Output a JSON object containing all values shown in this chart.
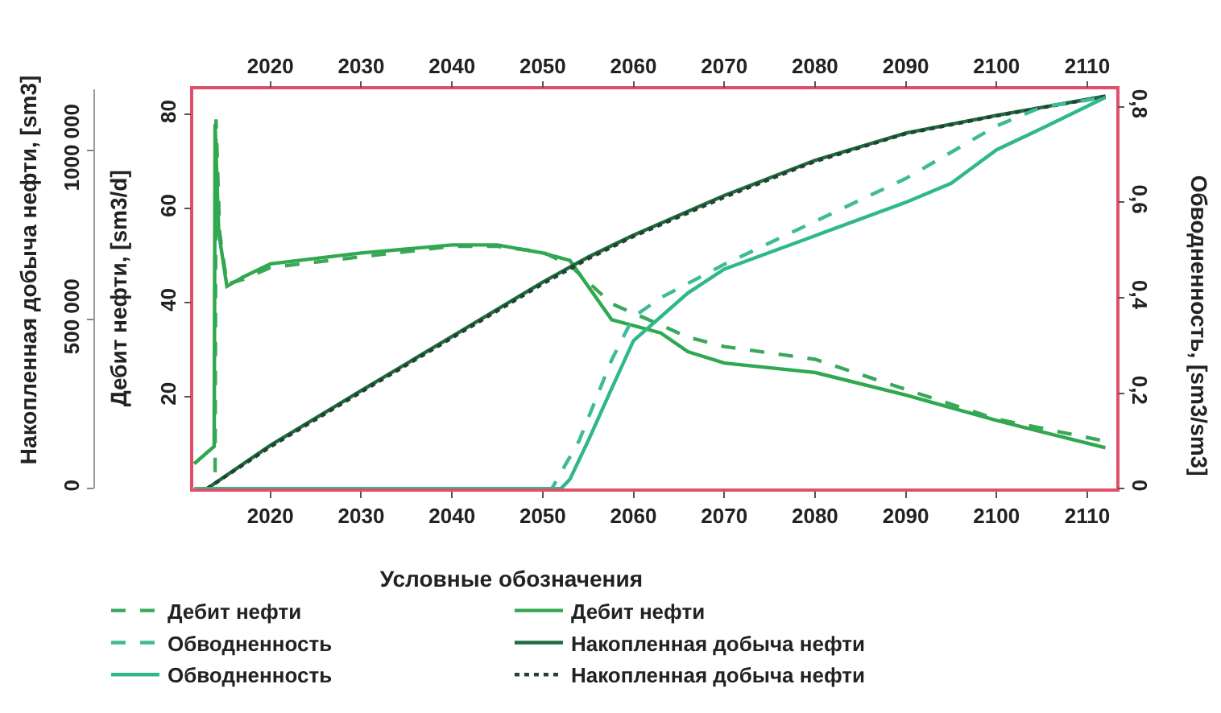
{
  "chart_data": {
    "type": "line",
    "ylabel": "Дебит нефти, [sm3/d]",
    "y2label": "Обводненность, [sm3/sm3]",
    "y3label": "Накопленная добыча нефти, [sm3]",
    "legend_title": "Условные обозначения",
    "legend": "bottom",
    "xlim": [
      2011.5,
      2113.2
    ],
    "xticks": [
      2020,
      2030,
      2040,
      2050,
      2060,
      2070,
      2080,
      2090,
      2100,
      2110
    ],
    "x2lim": [
      2011.5,
      2113.2
    ],
    "x2ticks": [
      2020,
      2030,
      2040,
      2050,
      2060,
      2070,
      2080,
      2090,
      2100,
      2110
    ],
    "ylim": [
      0.5,
      85.3
    ],
    "yticks": [
      20,
      40,
      60,
      80
    ],
    "y2lim": [
      0,
      0.836
    ],
    "y2ticks": [
      0,
      {
        "value": 0.2,
        "label": "0,2"
      },
      {
        "value": 0.4,
        "label": "0,4"
      },
      {
        "value": 0.6,
        "label": "0,6"
      },
      {
        "value": 0.8,
        "label": "0,8"
      }
    ],
    "y3lim": [
      0,
      1180000
    ],
    "y3ticks": [
      0,
      {
        "value": 500000,
        "label": "500 000"
      },
      {
        "value": 1000000,
        "label": "1000 000"
      }
    ],
    "series": [
      {
        "name": "Дебит нефти",
        "color": "#3aa85a",
        "line_style": "dashed",
        "axis": "y",
        "x": [
          2013.9,
          2014.0,
          2014.4,
          2015.2,
          2017,
          2020,
          2030,
          2040,
          2045,
          2050,
          2053,
          2057.6,
          2063,
          2066,
          2070,
          2080,
          2090,
          2100,
          2112
        ],
        "values": [
          4,
          79,
          55,
          44,
          45,
          47.5,
          49.8,
          52,
          52,
          50.8,
          48,
          39.8,
          35.3,
          32.7,
          30.7,
          28,
          21.6,
          15.3,
          10.6
        ]
      },
      {
        "name": "Дебит нефти",
        "color": "#2fa84f",
        "line_style": "solid",
        "axis": "y",
        "x": [
          2011.6,
          2013.8,
          2013.9,
          2014.3,
          2015.2,
          2017,
          2020,
          2030,
          2040,
          2045,
          2050,
          2053,
          2057.6,
          2063,
          2066,
          2070,
          2080,
          2090,
          2100,
          2112
        ],
        "values": [
          5.8,
          9.5,
          78,
          55,
          43.5,
          45.5,
          48.3,
          50.6,
          52.3,
          52.3,
          50.6,
          49,
          36.4,
          33.6,
          29.6,
          27.2,
          25.2,
          20.4,
          15,
          9.2
        ]
      },
      {
        "name": "Обводненность",
        "color": "#3dbb97",
        "line_style": "dashed",
        "axis": "y2",
        "x": [
          2012,
          2051,
          2054,
          2057.6,
          2060,
          2063,
          2066,
          2070,
          2080,
          2090,
          2100,
          2105,
          2112
        ],
        "values": [
          0,
          0,
          0.1,
          0.27,
          0.36,
          0.4,
          0.43,
          0.47,
          0.56,
          0.65,
          0.76,
          0.8,
          0.82
        ]
      },
      {
        "name": "Накопленная добыча нефти",
        "color": "#1d6b3e",
        "line_style": "solid",
        "axis": "y3",
        "x": [
          2013,
          2020,
          2030,
          2040,
          2050,
          2055,
          2060,
          2070,
          2080,
          2090,
          2100,
          2112
        ],
        "values": [
          0,
          128000,
          290000,
          450000,
          611000,
          685000,
          750000,
          867000,
          971000,
          1052000,
          1104000,
          1161000
        ]
      },
      {
        "name": "Обводненность",
        "color": "#2fb88c",
        "line_style": "solid",
        "axis": "y2",
        "x": [
          2011.6,
          2052,
          2053,
          2055,
          2057.6,
          2060,
          2063,
          2066,
          2070,
          2080,
          2090,
          2095,
          2100,
          2105,
          2112
        ],
        "values": [
          0,
          0,
          0.02,
          0.1,
          0.21,
          0.31,
          0.36,
          0.41,
          0.46,
          0.53,
          0.6,
          0.64,
          0.71,
          0.755,
          0.82
        ]
      },
      {
        "name": "Накопленная добыча нефти",
        "color": "#24402e",
        "line_style": "dotted",
        "axis": "y3",
        "x": [
          2013,
          2020,
          2030,
          2040,
          2050,
          2055,
          2060,
          2070,
          2080,
          2090,
          2100,
          2112
        ],
        "values": [
          0,
          124000,
          286000,
          446000,
          606000,
          680000,
          746000,
          862000,
          968000,
          1050000,
          1103000,
          1160000
        ]
      }
    ]
  }
}
